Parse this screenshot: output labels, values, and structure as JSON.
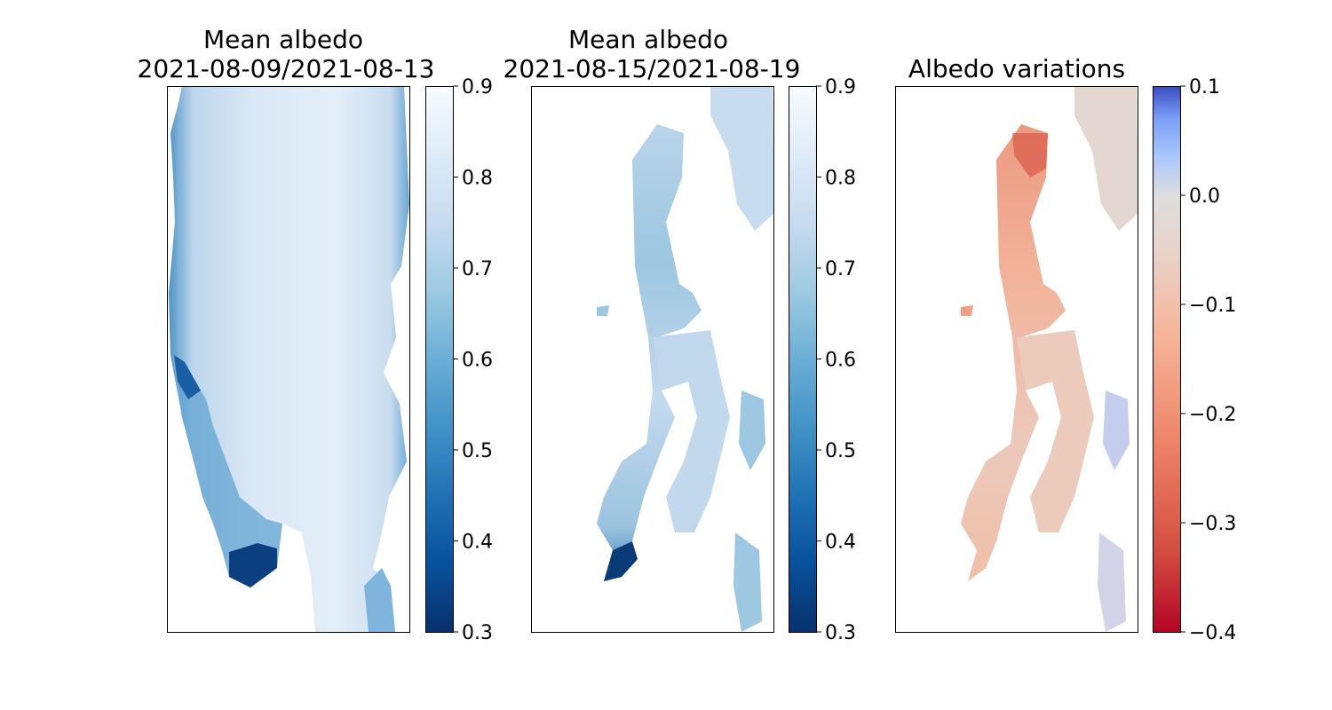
{
  "chart_data": [
    {
      "type": "heatmap",
      "title": "Mean albedo\n2021-08-09/2021-08-13",
      "title_lines": [
        "Mean albedo",
        "2021-08-09/2021-08-13"
      ],
      "xlabel": "",
      "ylabel": "",
      "colormap": "Blues_r",
      "colorbar": {
        "range": [
          0.3,
          0.9
        ],
        "ticks": [
          0.3,
          0.4,
          0.5,
          0.6,
          0.7,
          0.8,
          0.9
        ],
        "tick_labels": [
          "0.3",
          "0.4",
          "0.5",
          "0.6",
          "0.7",
          "0.8",
          "0.9"
        ],
        "colors": [
          "#08306b",
          "#08519c",
          "#2171b5",
          "#4292c6",
          "#6baed6",
          "#9ecae1",
          "#c6dbef",
          "#deebf7",
          "#f7fbff"
        ]
      },
      "field": {
        "typical_value": 0.82,
        "edge_value": 0.45,
        "coverage": "large glacier mass, nearly full frame"
      }
    },
    {
      "type": "heatmap",
      "title": "Mean albedo\n2021-08-15/2021-08-19",
      "title_lines": [
        "Mean albedo",
        "2021-08-15/2021-08-19"
      ],
      "xlabel": "",
      "ylabel": "",
      "colormap": "Blues_r",
      "colorbar": {
        "range": [
          0.3,
          0.9
        ],
        "ticks": [
          0.3,
          0.4,
          0.5,
          0.6,
          0.7,
          0.8,
          0.9
        ],
        "tick_labels": [
          "0.3",
          "0.4",
          "0.5",
          "0.6",
          "0.7",
          "0.8",
          "0.9"
        ],
        "colors": [
          "#08306b",
          "#08519c",
          "#2171b5",
          "#4292c6",
          "#6baed6",
          "#9ecae1",
          "#c6dbef",
          "#deebf7",
          "#f7fbff"
        ]
      },
      "field": {
        "typical_value": 0.76,
        "edge_value": 0.4,
        "coverage": "partial, clouds masked"
      }
    },
    {
      "type": "heatmap",
      "title": "Albedo variations",
      "title_lines": [
        "Albedo variations"
      ],
      "xlabel": "",
      "ylabel": "",
      "colormap": "coolwarm_r",
      "colorbar": {
        "range": [
          -0.4,
          0.1
        ],
        "ticks": [
          -0.4,
          -0.3,
          -0.2,
          -0.1,
          0.0,
          0.1
        ],
        "tick_labels": [
          "−0.4",
          "−0.3",
          "−0.2",
          "−0.1",
          "0.0",
          "0.1"
        ],
        "colors": [
          "#b40426",
          "#d44e41",
          "#ee8468",
          "#f6b69b",
          "#e8d4cc",
          "#dddddd",
          "#aac7fd",
          "#7b9ff9",
          "#3b4cc0"
        ]
      },
      "field": {
        "typical_value": -0.07,
        "min_value": -0.25,
        "max_value": 0.05,
        "coverage": "partial, clouds masked"
      }
    }
  ]
}
